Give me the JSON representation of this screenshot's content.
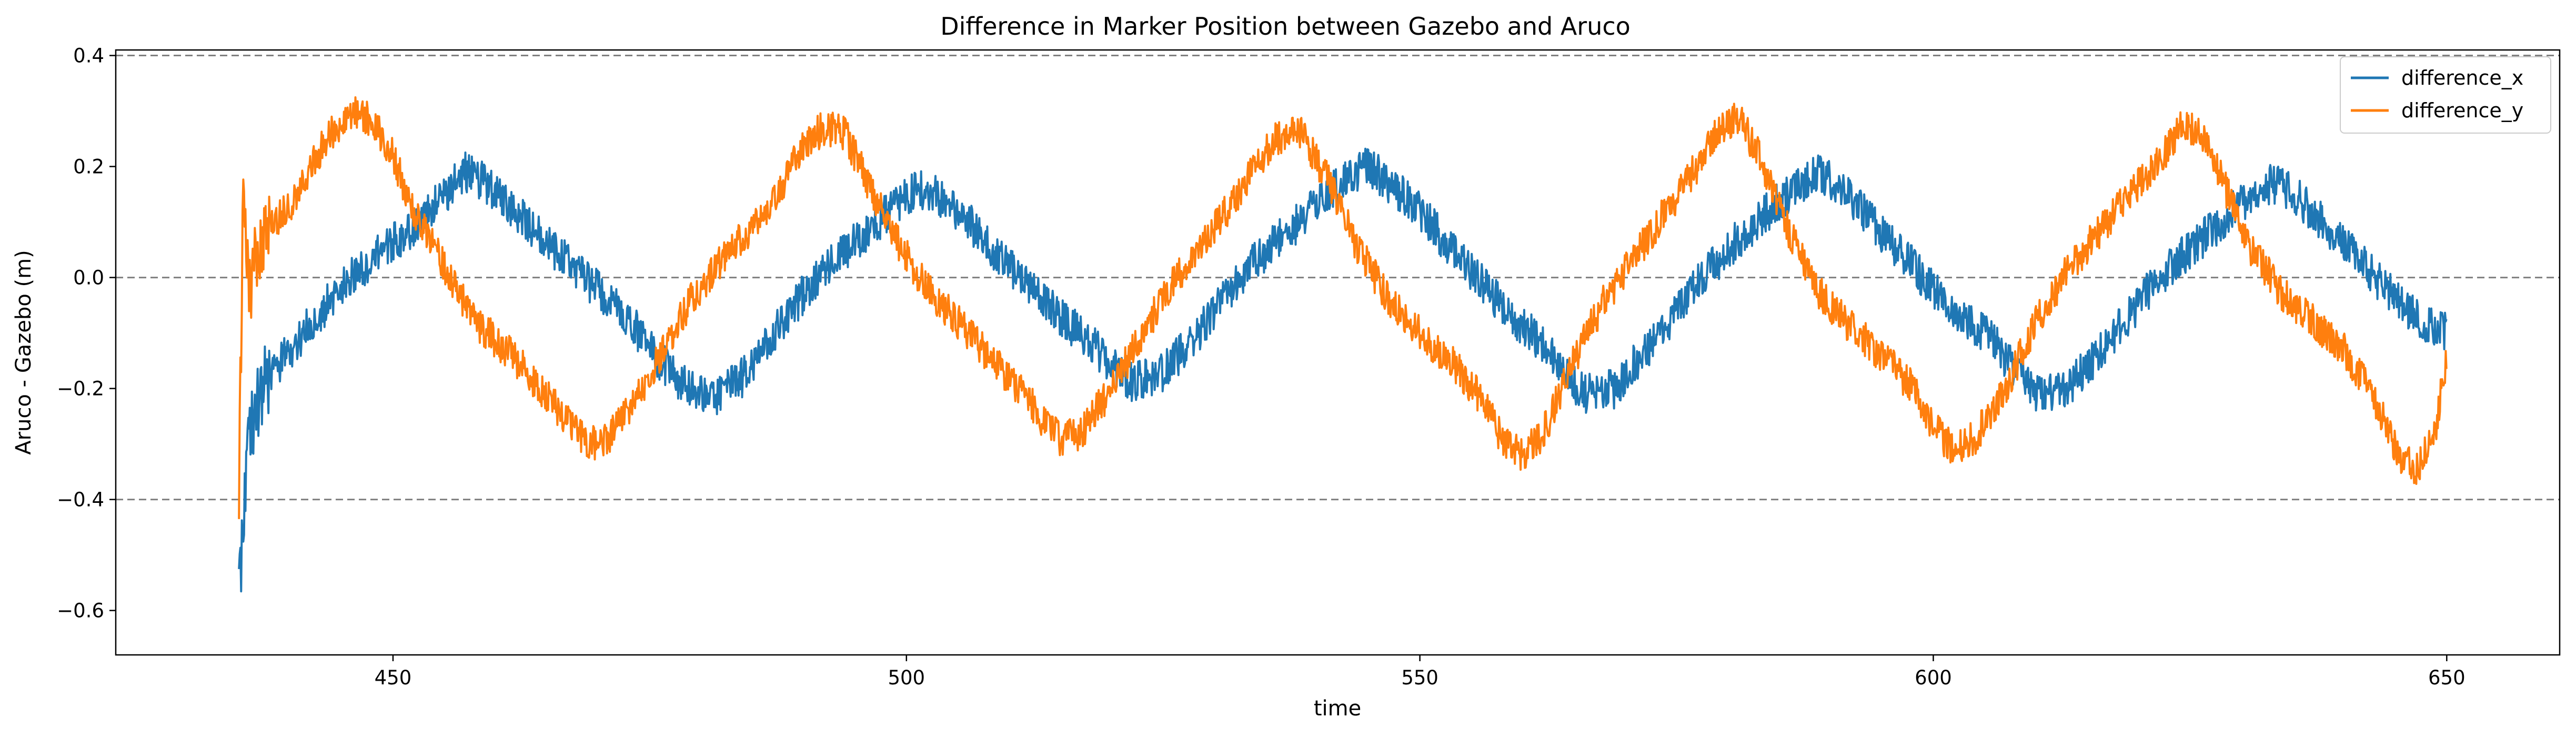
{
  "chart_data": {
    "type": "line",
    "title": "Difference in Marker Position between Gazebo and Aruco",
    "xlabel": "time",
    "ylabel": "Aruco - Gazebo (m)",
    "xlim": [
      423,
      661
    ],
    "ylim": [
      -0.68,
      0.41
    ],
    "xticks": [
      450,
      500,
      550,
      600,
      650
    ],
    "yticks": [
      -0.6,
      -0.4,
      -0.2,
      0.0,
      0.2,
      0.4
    ],
    "xtick_labels": [
      "450",
      "500",
      "550",
      "600",
      "650"
    ],
    "ytick_labels": [
      "−0.6",
      "−0.4",
      "−0.2",
      "0.0",
      "0.2",
      "0.4"
    ],
    "reference_lines": [
      0.4,
      0.0,
      -0.4
    ],
    "grid": false,
    "legend_position": "top-right",
    "series": [
      {
        "name": "difference_x",
        "color": "#1f77b4",
        "x": [
          435,
          435.5,
          436,
          437,
          438,
          440,
          443,
          446,
          449,
          452,
          455,
          457,
          459,
          462,
          465,
          468,
          471,
          474,
          476,
          478,
          481,
          484,
          487,
          490,
          493,
          496,
          499,
          501,
          503,
          506,
          509,
          512,
          515,
          518,
          520,
          522,
          525,
          528,
          531,
          534,
          537,
          540,
          543,
          545,
          547,
          550,
          553,
          556,
          559,
          562,
          564,
          566,
          569,
          572,
          575,
          578,
          581,
          584,
          587,
          589,
          591,
          594,
          597,
          600,
          603,
          606,
          608,
          610,
          613,
          616,
          619,
          622,
          625,
          628,
          631,
          633,
          635,
          638,
          641,
          644,
          647,
          650
        ],
        "y": [
          -0.55,
          -0.4,
          -0.28,
          -0.22,
          -0.18,
          -0.13,
          -0.06,
          0.0,
          0.05,
          0.09,
          0.15,
          0.19,
          0.17,
          0.12,
          0.06,
          0.01,
          -0.04,
          -0.1,
          -0.15,
          -0.19,
          -0.22,
          -0.18,
          -0.1,
          -0.03,
          0.03,
          0.08,
          0.13,
          0.16,
          0.15,
          0.1,
          0.04,
          -0.02,
          -0.07,
          -0.12,
          -0.16,
          -0.19,
          -0.17,
          -0.11,
          -0.04,
          0.03,
          0.08,
          0.13,
          0.18,
          0.2,
          0.17,
          0.12,
          0.05,
          -0.01,
          -0.07,
          -0.12,
          -0.17,
          -0.21,
          -0.2,
          -0.13,
          -0.06,
          0.01,
          0.07,
          0.12,
          0.17,
          0.19,
          0.16,
          0.1,
          0.04,
          -0.02,
          -0.07,
          -0.12,
          -0.17,
          -0.21,
          -0.2,
          -0.14,
          -0.07,
          0.0,
          0.05,
          0.1,
          0.15,
          0.17,
          0.15,
          0.1,
          0.04,
          -0.02,
          -0.07,
          -0.1
        ],
        "noise_amplitude": 0.04
      },
      {
        "name": "difference_y",
        "color": "#ff7f0e",
        "x": [
          435,
          435.4,
          436,
          437,
          438,
          440,
          442,
          444,
          446,
          448,
          450,
          452,
          455,
          458,
          461,
          464,
          467,
          469,
          471,
          473,
          476,
          479,
          482,
          485,
          488,
          490,
          492,
          494,
          496,
          499,
          502,
          505,
          508,
          511,
          513,
          515,
          517,
          520,
          523,
          526,
          529,
          532,
          534,
          536,
          538,
          541,
          544,
          547,
          550,
          553,
          556,
          558,
          560,
          562,
          565,
          568,
          571,
          574,
          577,
          579,
          581,
          583,
          586,
          589,
          592,
          595,
          598,
          600,
          602,
          604,
          607,
          610,
          613,
          616,
          619,
          622,
          624,
          626,
          628,
          631,
          634,
          637,
          640,
          643,
          645,
          647,
          649,
          650
        ],
        "y": [
          -0.38,
          0.15,
          -0.02,
          0.06,
          0.09,
          0.13,
          0.2,
          0.26,
          0.3,
          0.28,
          0.22,
          0.12,
          0.02,
          -0.08,
          -0.13,
          -0.19,
          -0.26,
          -0.3,
          -0.29,
          -0.24,
          -0.14,
          -0.04,
          0.03,
          0.09,
          0.17,
          0.24,
          0.27,
          0.26,
          0.18,
          0.07,
          -0.02,
          -0.08,
          -0.14,
          -0.2,
          -0.25,
          -0.29,
          -0.28,
          -0.2,
          -0.1,
          -0.01,
          0.07,
          0.14,
          0.2,
          0.25,
          0.27,
          0.18,
          0.05,
          -0.04,
          -0.1,
          -0.15,
          -0.22,
          -0.29,
          -0.32,
          -0.28,
          -0.15,
          -0.04,
          0.04,
          0.12,
          0.2,
          0.27,
          0.29,
          0.22,
          0.08,
          -0.03,
          -0.09,
          -0.14,
          -0.2,
          -0.27,
          -0.31,
          -0.29,
          -0.2,
          -0.08,
          0.01,
          0.08,
          0.15,
          0.21,
          0.27,
          0.26,
          0.18,
          0.05,
          -0.03,
          -0.08,
          -0.13,
          -0.22,
          -0.31,
          -0.35,
          -0.26,
          -0.14
        ],
        "noise_amplitude": 0.035
      }
    ]
  }
}
